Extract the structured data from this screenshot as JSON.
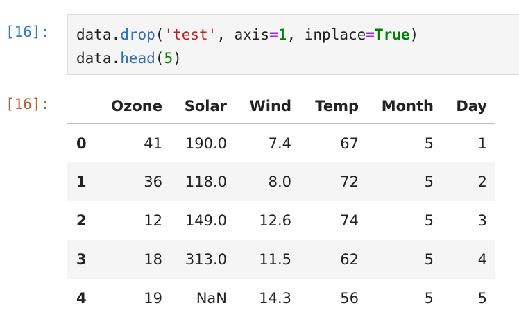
{
  "input": {
    "prompt": "[16]:",
    "lines": [
      [
        "data.",
        "drop",
        "(",
        "'test'",
        ", axis",
        "=",
        "1",
        ", inplace",
        "=",
        "True",
        ")"
      ],
      [
        "data.",
        "head",
        "(",
        "5",
        ")"
      ]
    ]
  },
  "output": {
    "prompt": "[16]:",
    "table": {
      "columns": [
        "Ozone",
        "Solar",
        "Wind",
        "Temp",
        "Month",
        "Day"
      ],
      "rows": [
        {
          "index": "0",
          "cells": [
            "41",
            "190.0",
            "7.4",
            "67",
            "5",
            "1"
          ]
        },
        {
          "index": "1",
          "cells": [
            "36",
            "118.0",
            "8.0",
            "72",
            "5",
            "2"
          ]
        },
        {
          "index": "2",
          "cells": [
            "12",
            "149.0",
            "12.6",
            "74",
            "5",
            "3"
          ]
        },
        {
          "index": "3",
          "cells": [
            "18",
            "313.0",
            "11.5",
            "62",
            "5",
            "4"
          ]
        },
        {
          "index": "4",
          "cells": [
            "19",
            "NaN",
            "14.3",
            "56",
            "5",
            "5"
          ]
        }
      ]
    }
  }
}
